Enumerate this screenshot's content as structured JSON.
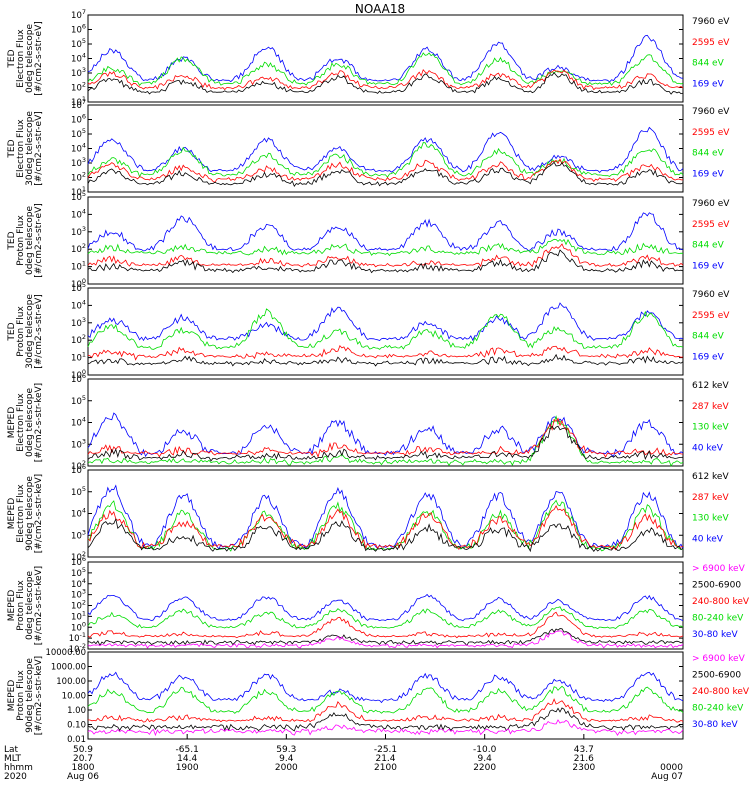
{
  "title": "NOAA18",
  "colors": {
    "blue": "#0000ff",
    "red": "#ff0000",
    "green": "#00dd00",
    "black": "#000000",
    "magenta": "#ff00ff",
    "frame": "#000000"
  },
  "chart_data": [
    {
      "type": "line",
      "label_lines": [
        "TED",
        "Electron Flux",
        "0deg telescope",
        "[#/cm2-s-str-eV]"
      ],
      "ylim_exp": [
        1,
        7
      ],
      "yticks": [
        "10^1",
        "10^2",
        "10^3",
        "10^4",
        "10^5",
        "10^6",
        "10^7"
      ],
      "channels": [
        {
          "label": "7960 eV",
          "color": "#000000",
          "base_exp": 1.5,
          "peaks": [
            2.5,
            2.4,
            2.3,
            2.7,
            2.8,
            2.6,
            2.9,
            2.4
          ]
        },
        {
          "label": "2595 eV",
          "color": "#ff0000",
          "base_exp": 1.8,
          "peaks": [
            3.0,
            2.8,
            2.7,
            3.0,
            3.1,
            2.9,
            3.1,
            2.8
          ]
        },
        {
          "label": "844 eV",
          "color": "#00dd00",
          "base_exp": 2.1,
          "peaks": [
            3.3,
            4.0,
            3.6,
            3.6,
            4.4,
            3.9,
            3.2,
            4.1
          ]
        },
        {
          "label": "169 eV",
          "color": "#0000ff",
          "base_exp": 2.3,
          "peaks": [
            4.6,
            4.0,
            4.8,
            4.0,
            4.6,
            5.0,
            3.4,
            5.5
          ]
        }
      ]
    },
    {
      "type": "line",
      "label_lines": [
        "TED",
        "Electron Flux",
        "30deg telescope",
        "[#/cm2-s-str-eV]"
      ],
      "ylim_exp": [
        1,
        7
      ],
      "yticks": [
        "10^1",
        "10^2",
        "10^3",
        "10^4",
        "10^5",
        "10^6",
        "10^7"
      ],
      "channels": [
        {
          "label": "7960 eV",
          "color": "#000000",
          "base_exp": 1.4,
          "peaks": [
            2.4,
            2.3,
            2.2,
            2.5,
            2.6,
            2.5,
            2.9,
            2.4
          ]
        },
        {
          "label": "2595 eV",
          "color": "#ff0000",
          "base_exp": 1.7,
          "peaks": [
            2.9,
            2.7,
            2.6,
            2.9,
            3.0,
            2.9,
            3.1,
            2.8
          ]
        },
        {
          "label": "844 eV",
          "color": "#00dd00",
          "base_exp": 2.0,
          "peaks": [
            3.2,
            3.9,
            3.5,
            3.5,
            4.3,
            3.8,
            3.2,
            4.0
          ]
        },
        {
          "label": "169 eV",
          "color": "#0000ff",
          "base_exp": 2.3,
          "peaks": [
            4.6,
            4.0,
            4.6,
            4.0,
            4.6,
            5.1,
            3.4,
            5.3
          ]
        }
      ]
    },
    {
      "type": "line",
      "label_lines": [
        "TED",
        "Proton Flux",
        "0deg telescope",
        "[#/cm2-s-str-eV]"
      ],
      "ylim_exp": [
        0,
        5
      ],
      "yticks": [
        "10^0",
        "10^1",
        "10^2",
        "10^3",
        "10^4",
        "10^5"
      ],
      "channels": [
        {
          "label": "7960 eV",
          "color": "#000000",
          "base_exp": 0.6,
          "peaks": [
            1.0,
            1.2,
            1.0,
            1.3,
            1.0,
            1.2,
            1.8,
            1.2
          ]
        },
        {
          "label": "2595 eV",
          "color": "#ff0000",
          "base_exp": 0.9,
          "peaks": [
            1.4,
            1.5,
            1.3,
            1.6,
            1.3,
            1.5,
            2.2,
            1.5
          ]
        },
        {
          "label": "844 eV",
          "color": "#00dd00",
          "base_exp": 1.6,
          "peaks": [
            2.1,
            2.2,
            2.0,
            2.2,
            2.0,
            2.2,
            2.6,
            2.2
          ]
        },
        {
          "label": "169 eV",
          "color": "#0000ff",
          "base_exp": 1.8,
          "peaks": [
            3.0,
            3.8,
            3.3,
            3.3,
            3.5,
            3.5,
            3.0,
            4.0
          ]
        }
      ]
    },
    {
      "type": "line",
      "label_lines": [
        "TED",
        "Proton Flux",
        "30deg telescope",
        "[#/cm2-s-str-eV]"
      ],
      "ylim_exp": [
        0,
        5
      ],
      "yticks": [
        "10^0",
        "10^1",
        "10^2",
        "10^3",
        "10^4",
        "10^5"
      ],
      "channels": [
        {
          "label": "7960 eV",
          "color": "#000000",
          "base_exp": 0.5,
          "peaks": [
            0.8,
            0.9,
            0.8,
            0.9,
            0.8,
            0.9,
            1.0,
            0.9
          ]
        },
        {
          "label": "2595 eV",
          "color": "#ff0000",
          "base_exp": 0.9,
          "peaks": [
            1.3,
            1.4,
            1.2,
            1.5,
            1.2,
            1.4,
            1.6,
            1.4
          ]
        },
        {
          "label": "844 eV",
          "color": "#00dd00",
          "base_exp": 1.4,
          "peaks": [
            2.8,
            2.6,
            3.6,
            2.5,
            2.5,
            3.5,
            2.7,
            3.5
          ]
        },
        {
          "label": "169 eV",
          "color": "#0000ff",
          "base_exp": 1.9,
          "peaks": [
            3.2,
            3.3,
            2.9,
            3.8,
            3.0,
            3.2,
            4.0,
            3.6
          ]
        }
      ]
    },
    {
      "type": "line",
      "label_lines": [
        "MEPED",
        "Electron Flux",
        "0deg telescope",
        "[#/cm2-s-str-keV]"
      ],
      "ylim_exp": [
        2,
        6
      ],
      "yticks": [
        "10^2",
        "10^3",
        "10^4",
        "10^5",
        "10^6"
      ],
      "channels": [
        {
          "label": "612 keV",
          "color": "#000000",
          "base_exp": 2.2,
          "peaks": [
            2.6,
            2.5,
            2.5,
            2.6,
            2.5,
            2.5,
            3.8,
            2.5
          ]
        },
        {
          "label": "287 keV",
          "color": "#ff0000",
          "base_exp": 2.4,
          "peaks": [
            2.8,
            2.7,
            2.7,
            2.9,
            2.8,
            2.7,
            4.0,
            2.7
          ]
        },
        {
          "label": "130 keV",
          "color": "#00dd00",
          "base_exp": 2.0,
          "peaks": [
            2.2,
            2.2,
            2.2,
            2.4,
            2.2,
            2.2,
            4.1,
            2.2
          ]
        },
        {
          "label": "40 keV",
          "color": "#0000ff",
          "base_exp": 2.4,
          "peaks": [
            4.3,
            3.6,
            3.8,
            4.0,
            3.8,
            3.7,
            4.2,
            4.0
          ]
        }
      ]
    },
    {
      "type": "line",
      "label_lines": [
        "MEPED",
        "Electron Flux",
        "90deg telescope",
        "[#/cm2-s-str-keV]"
      ],
      "ylim_exp": [
        2,
        6
      ],
      "yticks": [
        "10^2",
        "10^3",
        "10^4",
        "10^5",
        "10^6"
      ],
      "channels": [
        {
          "label": "612 keV",
          "color": "#000000",
          "base_exp": 2.2,
          "peaks": [
            3.6,
            3.0,
            3.4,
            3.5,
            3.3,
            3.3,
            3.5,
            3.2
          ]
        },
        {
          "label": "287 keV",
          "color": "#ff0000",
          "base_exp": 2.3,
          "peaks": [
            4.0,
            3.6,
            3.8,
            4.0,
            3.9,
            3.7,
            4.2,
            3.8
          ]
        },
        {
          "label": "130 keV",
          "color": "#00dd00",
          "base_exp": 2.2,
          "peaks": [
            4.4,
            4.0,
            4.0,
            4.3,
            4.1,
            4.0,
            4.5,
            4.2
          ]
        },
        {
          "label": "40 keV",
          "color": "#0000ff",
          "base_exp": 2.3,
          "peaks": [
            5.2,
            4.8,
            4.7,
            5.0,
            4.9,
            4.8,
            5.0,
            4.9
          ]
        }
      ]
    },
    {
      "type": "line",
      "label_lines": [
        "MEPED",
        "Proton Flux",
        "0deg telescope",
        "[#/cm2-s-str-keV]"
      ],
      "ylim_exp": [
        -2,
        6
      ],
      "yticks": [
        "10^-2",
        "10^-1",
        "10^0",
        "10^1",
        "10^2",
        "10^3",
        "10^4",
        "10^5",
        "10^6"
      ],
      "channels": [
        {
          "label": "> 6900 keV",
          "color": "#ff00ff",
          "base_exp": -1.8,
          "peaks": [
            -1.8,
            -1.8,
            -1.8,
            -1.0,
            -1.8,
            -1.8,
            -0.5,
            -1.8
          ]
        },
        {
          "label": "2500-6900",
          "color": "#000000",
          "base_exp": -1.5,
          "peaks": [
            -1.5,
            -1.5,
            -1.5,
            -0.8,
            -1.5,
            -1.5,
            -0.2,
            -1.5
          ]
        },
        {
          "label": "240-800 keV",
          "color": "#ff0000",
          "base_exp": -1.0,
          "peaks": [
            -0.5,
            -0.6,
            -0.5,
            0.8,
            -0.6,
            -0.6,
            1.2,
            -0.6
          ]
        },
        {
          "label": "80-240 keV",
          "color": "#00dd00",
          "base_exp": -0.2,
          "peaks": [
            1.2,
            1.5,
            1.3,
            1.6,
            1.5,
            1.4,
            1.8,
            1.5
          ]
        },
        {
          "label": "30-80 keV",
          "color": "#0000ff",
          "base_exp": 0.5,
          "peaks": [
            3.0,
            2.7,
            2.8,
            2.5,
            3.0,
            2.6,
            2.4,
            2.8
          ]
        }
      ]
    },
    {
      "type": "line",
      "label_lines": [
        "MEPED",
        "Proton Flux",
        "90deg telescope",
        "[#/cm2-s-str-keV]"
      ],
      "ylim_exp": [
        -2,
        4
      ],
      "yticks": [
        "0.01",
        "0.10",
        "1.00",
        "10.00",
        "100.00",
        "1000.00",
        "10000.00"
      ],
      "channels": [
        {
          "label": "> 6900 keV",
          "color": "#ff00ff",
          "base_exp": -1.6,
          "peaks": [
            -1.6,
            -1.6,
            -1.6,
            -1.2,
            -1.6,
            -1.6,
            -0.8,
            -1.6
          ]
        },
        {
          "label": "2500-6900",
          "color": "#000000",
          "base_exp": -1.3,
          "peaks": [
            -1.3,
            -1.3,
            -1.3,
            -0.3,
            -1.3,
            -1.3,
            0.0,
            -1.3
          ]
        },
        {
          "label": "240-800 keV",
          "color": "#ff0000",
          "base_exp": -0.9,
          "peaks": [
            -0.5,
            -0.5,
            -0.5,
            0.4,
            -0.5,
            -0.5,
            0.6,
            -0.5
          ]
        },
        {
          "label": "80-240 keV",
          "color": "#00dd00",
          "base_exp": -0.3,
          "peaks": [
            1.3,
            1.4,
            1.3,
            1.2,
            1.4,
            1.3,
            1.5,
            1.4
          ]
        },
        {
          "label": "30-80 keV",
          "color": "#0000ff",
          "base_exp": 0.5,
          "peaks": [
            2.5,
            2.3,
            2.4,
            1.3,
            2.4,
            2.3,
            2.0,
            2.5
          ]
        }
      ]
    }
  ],
  "xaxis": {
    "row_labels": [
      "Lat",
      "MLT",
      "hhmm",
      "2020"
    ],
    "ticks": [
      {
        "lat": "50.9",
        "mlt": "20.7",
        "hhmm": "1800",
        "date": "Aug 06"
      },
      {
        "lat": "-65.1",
        "mlt": "14.4",
        "hhmm": "1900",
        "date": ""
      },
      {
        "lat": "59.3",
        "mlt": "9.4",
        "hhmm": "2000",
        "date": ""
      },
      {
        "lat": "-25.1",
        "mlt": "21.4",
        "hhmm": "2100",
        "date": ""
      },
      {
        "lat": "-10.0",
        "mlt": "9.4",
        "hhmm": "2200",
        "date": ""
      },
      {
        "lat": "43.7",
        "mlt": "21.6",
        "hhmm": "2300",
        "date": ""
      },
      {
        "lat": "",
        "mlt": "",
        "hhmm": "0000",
        "date": "Aug 07"
      }
    ]
  }
}
